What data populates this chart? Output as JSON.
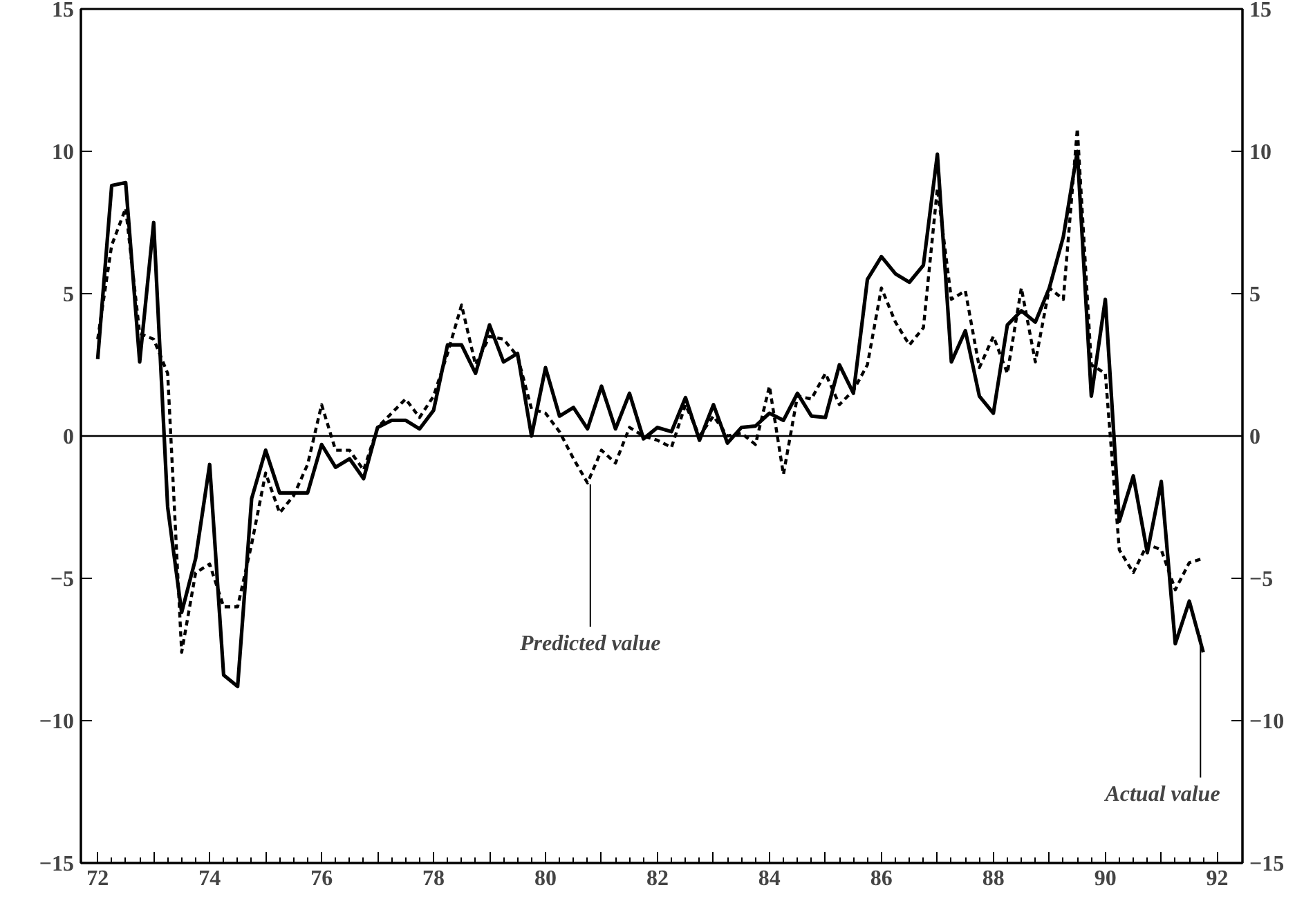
{
  "chart_data": {
    "type": "line",
    "x": [
      72.0,
      72.25,
      72.5,
      72.75,
      73.0,
      73.25,
      73.5,
      73.75,
      74.0,
      74.25,
      74.5,
      74.75,
      75.0,
      75.25,
      75.5,
      75.75,
      76.0,
      76.25,
      76.5,
      76.75,
      77.0,
      77.25,
      77.5,
      77.75,
      78.0,
      78.25,
      78.5,
      78.75,
      79.0,
      79.25,
      79.5,
      79.75,
      80.0,
      80.25,
      80.5,
      80.75,
      81.0,
      81.25,
      81.5,
      81.75,
      82.0,
      82.25,
      82.5,
      82.75,
      83.0,
      83.25,
      83.5,
      83.75,
      84.0,
      84.25,
      84.5,
      84.75,
      85.0,
      85.25,
      85.5,
      85.75,
      86.0,
      86.25,
      86.5,
      86.75,
      87.0,
      87.25,
      87.5,
      87.75,
      88.0,
      88.25,
      88.5,
      88.75,
      89.0,
      89.25,
      89.5,
      89.75,
      90.0,
      90.25,
      90.5,
      90.75,
      91.0,
      91.25,
      91.5,
      91.75
    ],
    "series": [
      {
        "color": "#000000",
        "line_style": "solid",
        "values": [
          2.7,
          8.8,
          8.9,
          2.6,
          7.5,
          -2.5,
          -6.2,
          -4.3,
          -1.0,
          -8.4,
          -8.8,
          -2.2,
          -0.5,
          -2.0,
          -2.0,
          -2.0,
          -0.3,
          -1.1,
          -0.8,
          -1.5,
          0.3,
          0.55,
          0.55,
          0.25,
          0.9,
          3.2,
          3.2,
          2.2,
          3.9,
          2.6,
          2.9,
          0.0,
          2.4,
          0.7,
          1.0,
          0.25,
          1.75,
          0.25,
          1.5,
          -0.1,
          0.3,
          0.15,
          1.35,
          -0.15,
          1.1,
          -0.25,
          0.3,
          0.35,
          0.8,
          0.55,
          1.5,
          0.7,
          0.65,
          2.5,
          1.5,
          5.5,
          6.3,
          5.7,
          5.4,
          6.0,
          9.9,
          2.6,
          3.7,
          1.4,
          0.8,
          3.9,
          4.4,
          4.0,
          5.2,
          7.0,
          10.0,
          1.4,
          4.8,
          -3.0,
          -1.4,
          -4.1,
          -1.6,
          -7.3,
          -5.8,
          -7.6
        ]
      },
      {
        "color": "#000000",
        "line_style": "dashed",
        "values": [
          3.4,
          6.7,
          8.0,
          3.6,
          3.4,
          2.2,
          -7.6,
          -4.8,
          -4.5,
          -6.0,
          -6.0,
          -3.8,
          -1.3,
          -2.7,
          -2.1,
          -1.0,
          1.1,
          -0.5,
          -0.5,
          -1.2,
          0.3,
          0.8,
          1.3,
          0.65,
          1.4,
          2.9,
          4.6,
          2.5,
          3.5,
          3.4,
          2.8,
          0.95,
          0.8,
          0.15,
          -0.8,
          -1.65,
          -0.5,
          -0.95,
          0.3,
          0.0,
          -0.15,
          -0.4,
          1.1,
          0.0,
          0.7,
          0.0,
          0.1,
          -0.3,
          1.75,
          -1.35,
          1.4,
          1.3,
          2.2,
          1.1,
          1.6,
          2.5,
          5.2,
          4.0,
          3.2,
          3.8,
          8.7,
          4.8,
          5.1,
          2.4,
          3.5,
          2.2,
          5.2,
          2.6,
          5.2,
          4.8,
          10.8,
          2.5,
          2.2,
          -4.0,
          -4.8,
          -3.8,
          -4.0,
          -5.4,
          -4.45,
          -4.3
        ]
      }
    ],
    "xlim": [
      71.7,
      92.45
    ],
    "xticks": [
      72,
      {
        "value": 73,
        "label": null
      },
      74,
      {
        "value": 75,
        "label": null
      },
      76,
      {
        "value": 77,
        "label": null
      },
      78,
      {
        "value": 79,
        "label": null
      },
      80,
      {
        "value": 81,
        "label": null
      },
      82,
      {
        "value": 83,
        "label": null
      },
      84,
      {
        "value": 85,
        "label": null
      },
      86,
      {
        "value": 87,
        "label": null
      },
      88,
      {
        "value": 89,
        "label": null
      },
      90,
      {
        "value": 91,
        "label": null
      },
      92
    ],
    "ylim": [
      -15,
      15
    ],
    "yticks": [
      -15,
      -10,
      -5,
      0,
      5,
      10,
      15
    ],
    "y2lim": [
      -15,
      15
    ],
    "y2ticks": [
      -15,
      -10,
      -5,
      0,
      5,
      10,
      15
    ],
    "ref_lines": [
      {
        "axis": "y",
        "value": 0,
        "color": "#000000"
      }
    ],
    "annotations": [
      {
        "text": "Predicted value",
        "x": 80.8,
        "y": -1.7
      },
      {
        "text": "Actual value",
        "x": 91.7,
        "y": -7.0
      }
    ],
    "grid": false
  }
}
